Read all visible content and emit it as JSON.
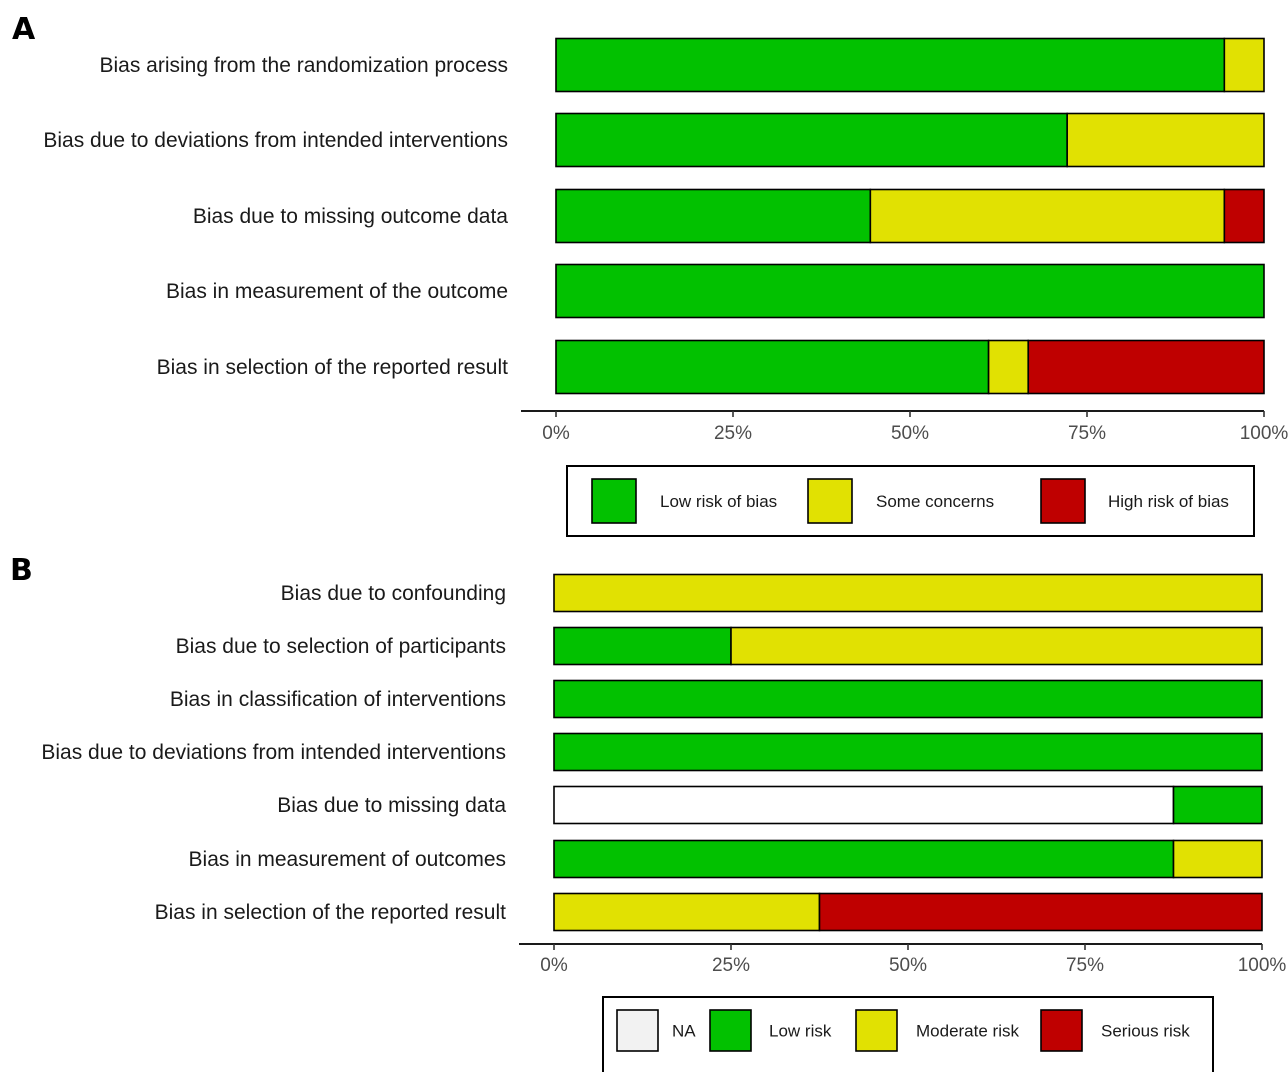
{
  "chart_data": [
    {
      "panel": "A",
      "type": "bar",
      "orientation": "horizontal",
      "stacked": true,
      "categories": [
        "Bias arising from the randomization process",
        "Bias due to deviations from intended interventions",
        "Bias due to missing outcome data",
        "Bias in measurement of the outcome",
        "Bias in selection of the reported result"
      ],
      "series": [
        {
          "name": "Low risk of bias",
          "color": "#02c100",
          "values": [
            94.4,
            72.2,
            44.4,
            100,
            61.1
          ]
        },
        {
          "name": "Some concerns",
          "color": "#e1e102",
          "values": [
            5.6,
            27.8,
            50.0,
            0,
            5.6
          ]
        },
        {
          "name": "High risk of bias",
          "color": "#bf0000",
          "values": [
            0,
            0,
            5.6,
            0,
            33.3
          ]
        }
      ],
      "xlim": [
        0,
        100
      ],
      "xticks": [
        "0%",
        "25%",
        "50%",
        "75%",
        "100%"
      ],
      "legend_position": "bottom",
      "grid": false
    },
    {
      "panel": "B",
      "type": "bar",
      "orientation": "horizontal",
      "stacked": true,
      "categories": [
        "Bias due to confounding",
        "Bias due to selection of participants",
        "Bias in classification of interventions",
        "Bias due to deviations from intended interventions",
        "Bias due to missing data",
        "Bias in measurement of outcomes",
        "Bias in selection of the reported result"
      ],
      "series": [
        {
          "name": "NA",
          "color": "#ffffff",
          "legend_color": "#f2f2f2",
          "values": [
            0,
            0,
            0,
            0,
            87.5,
            0,
            0
          ]
        },
        {
          "name": "Low risk",
          "color": "#02c100",
          "values": [
            0,
            25,
            100,
            100,
            12.5,
            87.5,
            0
          ]
        },
        {
          "name": "Moderate risk",
          "color": "#e1e102",
          "values": [
            100,
            75,
            0,
            0,
            0,
            12.5,
            37.5
          ]
        },
        {
          "name": "Serious risk",
          "color": "#bf0000",
          "values": [
            0,
            0,
            0,
            0,
            0,
            0,
            62.5
          ]
        }
      ],
      "xlim": [
        0,
        100
      ],
      "xticks": [
        "0%",
        "25%",
        "50%",
        "75%",
        "100%"
      ],
      "legend_position": "bottom",
      "grid": false
    }
  ]
}
